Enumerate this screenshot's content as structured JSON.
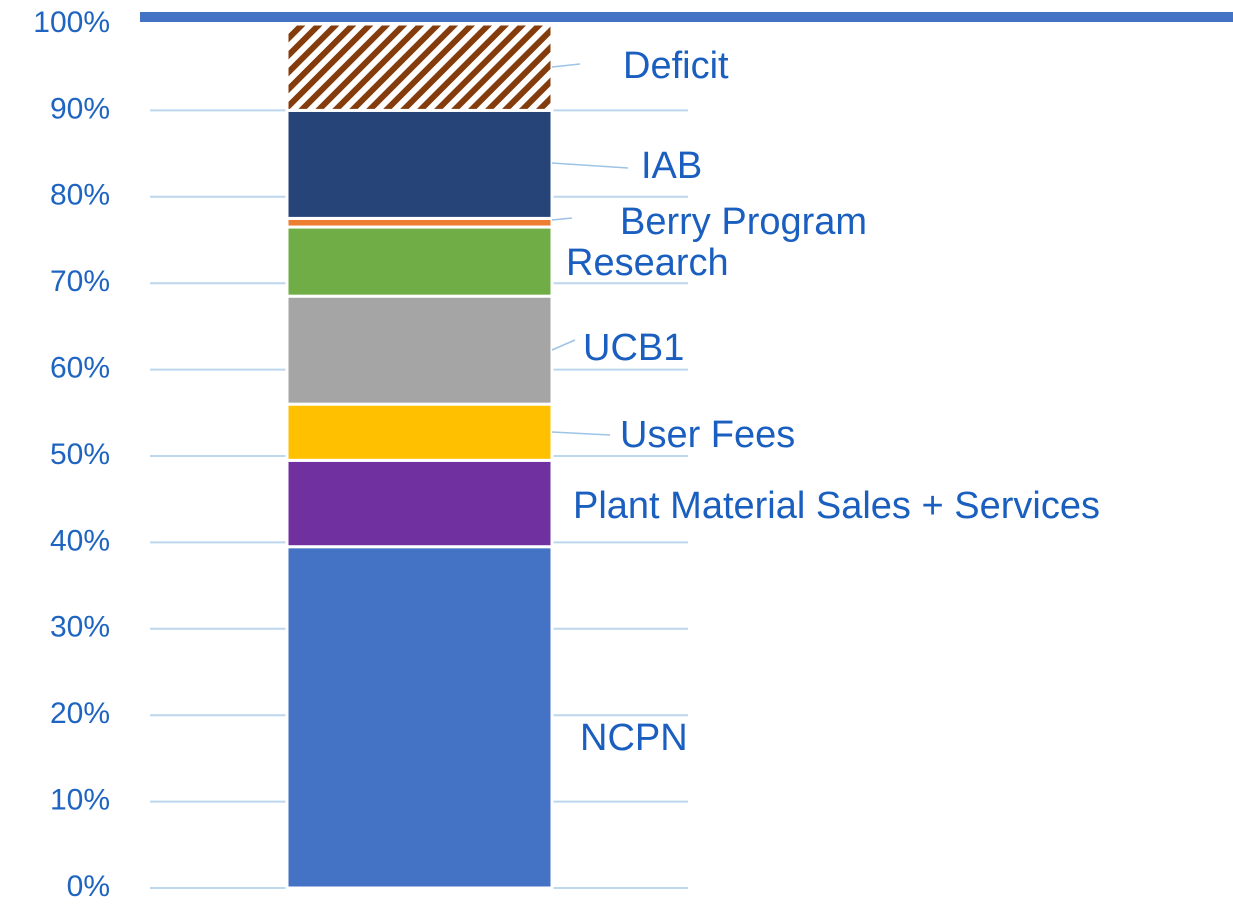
{
  "chart_data": {
    "type": "bar",
    "stacked": true,
    "categories": [
      null
    ],
    "series": [
      {
        "name": "NCPN",
        "color": "#4472c4",
        "values": [
          39.5
        ]
      },
      {
        "name": "Plant Material Sales + Services",
        "color": "#7030a0",
        "values": [
          10
        ]
      },
      {
        "name": "User Fees",
        "color": "#ffc000",
        "values": [
          6.5
        ]
      },
      {
        "name": "UCB1",
        "color": "#a5a5a5",
        "values": [
          12.5
        ]
      },
      {
        "name": "Research",
        "color": "#70ad47",
        "values": [
          8
        ]
      },
      {
        "name": "Berry Program",
        "color": "#ed7d31",
        "values": [
          1
        ]
      },
      {
        "name": "IAB",
        "color": "#264478",
        "values": [
          12.5
        ]
      },
      {
        "name": "Deficit",
        "color": "#843c0c",
        "pattern": "hatch",
        "values": [
          10
        ]
      }
    ],
    "ylim": [
      0,
      100
    ],
    "yticks": [
      {
        "value": 0,
        "label": "0%"
      },
      {
        "value": 10,
        "label": "10%"
      },
      {
        "value": 20,
        "label": "20%"
      },
      {
        "value": 30,
        "label": "30%"
      },
      {
        "value": 40,
        "label": "40%"
      },
      {
        "value": 50,
        "label": "50%"
      },
      {
        "value": 60,
        "label": "60%"
      },
      {
        "value": 70,
        "label": "70%"
      },
      {
        "value": 80,
        "label": "80%"
      },
      {
        "value": 90,
        "label": "90%"
      },
      {
        "value": 100,
        "label": "100%"
      }
    ],
    "grid": true
  }
}
